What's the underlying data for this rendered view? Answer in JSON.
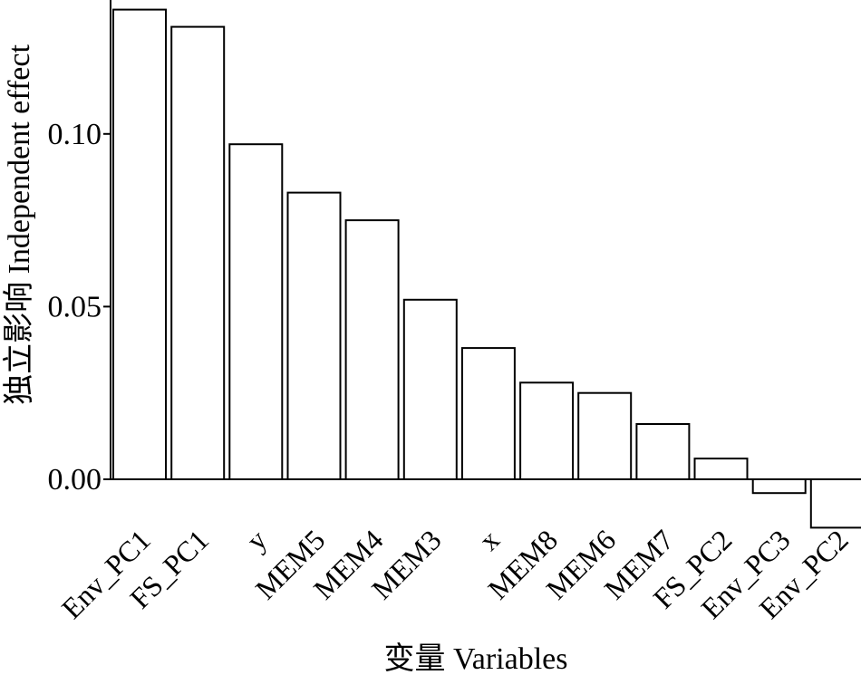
{
  "chart_data": {
    "type": "bar",
    "categories": [
      "Env_PC1",
      "FS_PC1",
      "y",
      "MEM5",
      "MEM4",
      "MEM3",
      "x",
      "MEM8",
      "MEM6",
      "MEM7",
      "FS_PC2",
      "Env_PC3",
      "Env_PC2"
    ],
    "values": [
      0.136,
      0.131,
      0.097,
      0.083,
      0.075,
      0.052,
      0.038,
      0.028,
      0.025,
      0.016,
      0.006,
      -0.004,
      -0.014
    ],
    "xlabel": "变量 Variables",
    "ylabel": "独立影响 Independent effect",
    "yticks": [
      0.0,
      0.05,
      0.1
    ],
    "ytick_labels": [
      "0.00",
      "0.05",
      "0.10"
    ],
    "ylim": [
      -0.016,
      0.138
    ],
    "grid": false,
    "bar_fill": "#ffffff",
    "bar_stroke": "#000000"
  }
}
